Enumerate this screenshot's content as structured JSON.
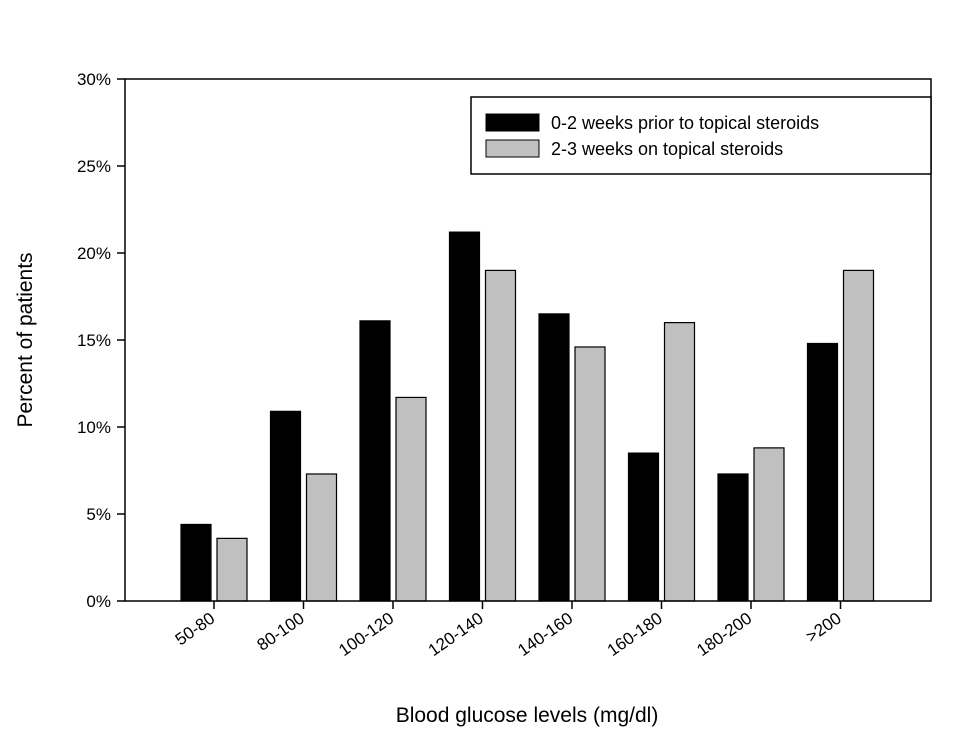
{
  "chart_data": {
    "type": "bar",
    "title": "",
    "xlabel": "Blood glucose levels (mg/dl)",
    "ylabel": "Percent of patients",
    "ylim": [
      0,
      30
    ],
    "yticks": [
      "0%",
      "5%",
      "10%",
      "15%",
      "20%",
      "25%",
      "30%"
    ],
    "grid": false,
    "legend_position": "top-right",
    "categories": [
      "50-80",
      "80-100",
      "100-120",
      "120-140",
      "140-160",
      "160-180",
      "180-200",
      ">200"
    ],
    "series": [
      {
        "name": "0-2 weeks prior to topical steroids",
        "color": "#000000",
        "values": [
          4.4,
          10.9,
          16.1,
          21.2,
          16.5,
          8.5,
          7.3,
          14.8
        ]
      },
      {
        "name": "2-3 weeks on topical steroids",
        "color": "#c0c0c0",
        "values": [
          3.6,
          7.3,
          11.7,
          19.0,
          14.6,
          16.0,
          8.8,
          19.0
        ]
      }
    ]
  }
}
